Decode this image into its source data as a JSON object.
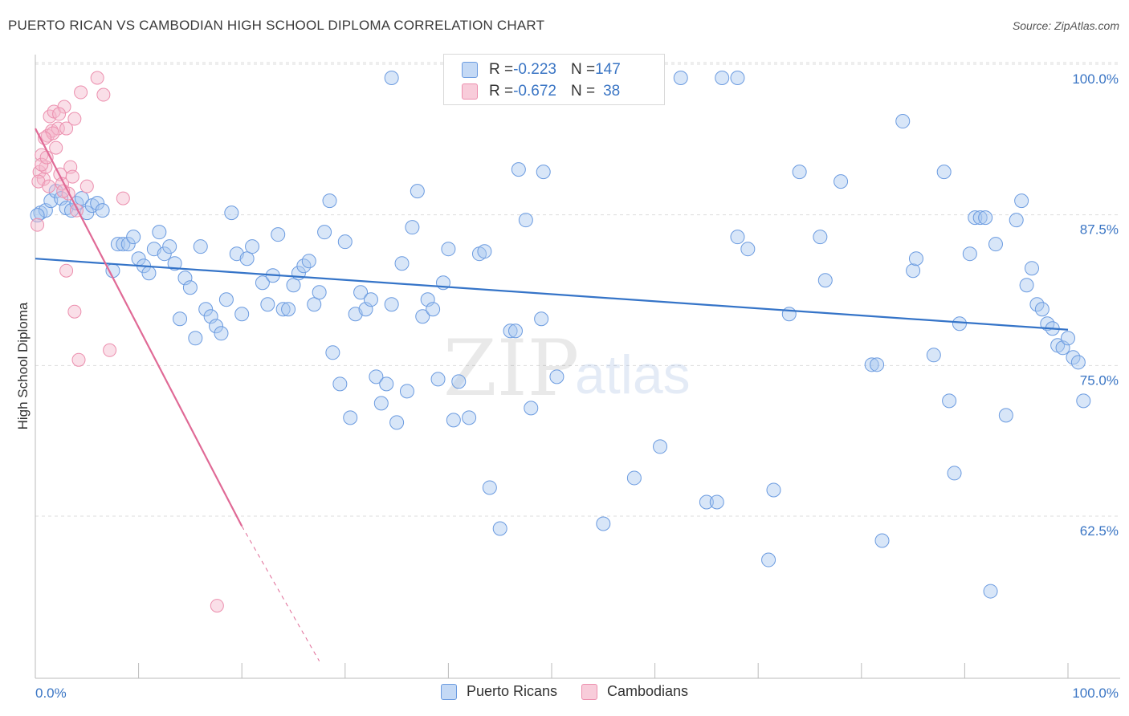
{
  "title": "PUERTO RICAN VS CAMBODIAN HIGH SCHOOL DIPLOMA CORRELATION CHART",
  "source": "Source: ZipAtlas.com",
  "watermark": {
    "zip": "ZIP",
    "atlas": "atlas"
  },
  "legend_top": [
    {
      "r_label": "R = ",
      "r_value": "-0.223",
      "n_label": "N = ",
      "n_value": "147"
    },
    {
      "r_label": "R = ",
      "r_value": "-0.672",
      "n_label": "N = ",
      "n_value": "38"
    }
  ],
  "legend_bottom": [
    {
      "label": "Puerto Ricans"
    },
    {
      "label": "Cambodians"
    }
  ],
  "colors": {
    "blue_fill": "#a9c8ef",
    "blue_stroke": "#6b9be0",
    "blue_line": "#3574c8",
    "pink_fill": "#f5b9cc",
    "pink_stroke": "#ec8fae",
    "pink_line": "#e06a96",
    "axis_label": "#3a75c4",
    "grid": "#dddddd"
  },
  "chart_data": {
    "type": "scatter",
    "title": "PUERTO RICAN VS CAMBODIAN HIGH SCHOOL DIPLOMA CORRELATION CHART",
    "xlabel": "",
    "ylabel": "High School Diploma",
    "xlim": [
      0,
      100
    ],
    "ylim": [
      51.5,
      101.5
    ],
    "x_tick_labels": [
      {
        "value": 0,
        "label": "0.0%"
      },
      {
        "value": 100,
        "label": "100.0%"
      }
    ],
    "y_tick_labels": [
      {
        "value": 100,
        "label": "100.0%"
      },
      {
        "value": 87.5,
        "label": "87.5%"
      },
      {
        "value": 75,
        "label": "75.0%"
      },
      {
        "value": 62.5,
        "label": "62.5%"
      }
    ],
    "series": [
      {
        "name": "Puerto Ricans",
        "r": -0.223,
        "n": 147,
        "trend": {
          "x": [
            0,
            100
          ],
          "y": [
            85.0,
            79.1
          ]
        },
        "points": [
          [
            0.5,
            88.8
          ],
          [
            1.0,
            89.0
          ],
          [
            1.5,
            89.8
          ],
          [
            2.0,
            90.6
          ],
          [
            2.5,
            90.0
          ],
          [
            3.0,
            89.2
          ],
          [
            3.5,
            89.0
          ],
          [
            4.0,
            89.6
          ],
          [
            4.5,
            90.0
          ],
          [
            5.0,
            88.8
          ],
          [
            5.5,
            89.4
          ],
          [
            6.0,
            89.6
          ],
          [
            6.5,
            89.0
          ],
          [
            7.5,
            84.0
          ],
          [
            8.0,
            86.2
          ],
          [
            8.5,
            86.2
          ],
          [
            9.0,
            86.2
          ],
          [
            9.5,
            86.8
          ],
          [
            10.0,
            85.0
          ],
          [
            10.5,
            84.4
          ],
          [
            11.0,
            83.8
          ],
          [
            11.5,
            85.8
          ],
          [
            12.0,
            87.2
          ],
          [
            12.5,
            85.4
          ],
          [
            13.0,
            86.0
          ],
          [
            13.5,
            84.6
          ],
          [
            14.0,
            80.0
          ],
          [
            14.5,
            83.4
          ],
          [
            15.0,
            82.6
          ],
          [
            15.5,
            78.4
          ],
          [
            16.0,
            86.0
          ],
          [
            16.5,
            80.8
          ],
          [
            17.0,
            80.2
          ],
          [
            17.5,
            79.4
          ],
          [
            18.0,
            78.8
          ],
          [
            18.5,
            81.6
          ],
          [
            19.0,
            88.8
          ],
          [
            19.5,
            85.4
          ],
          [
            20.0,
            80.4
          ],
          [
            20.5,
            85.0
          ],
          [
            21.0,
            86.0
          ],
          [
            22.0,
            83.0
          ],
          [
            22.5,
            81.2
          ],
          [
            23.0,
            83.6
          ],
          [
            23.5,
            87.0
          ],
          [
            24.0,
            80.8
          ],
          [
            24.5,
            80.8
          ],
          [
            25.0,
            82.8
          ],
          [
            25.5,
            83.8
          ],
          [
            26.0,
            84.4
          ],
          [
            26.5,
            84.8
          ],
          [
            27.0,
            81.2
          ],
          [
            27.5,
            82.2
          ],
          [
            28.0,
            87.2
          ],
          [
            28.5,
            89.8
          ],
          [
            28.8,
            77.2
          ],
          [
            29.5,
            74.6
          ],
          [
            30.0,
            86.4
          ],
          [
            30.5,
            71.8
          ],
          [
            31.0,
            80.4
          ],
          [
            31.5,
            82.2
          ],
          [
            32.0,
            80.8
          ],
          [
            32.5,
            81.6
          ],
          [
            33.0,
            75.2
          ],
          [
            33.5,
            73.0
          ],
          [
            34.0,
            74.6
          ],
          [
            34.5,
            81.2
          ],
          [
            35.0,
            71.4
          ],
          [
            35.5,
            84.6
          ],
          [
            36.0,
            74.0
          ],
          [
            36.5,
            87.6
          ],
          [
            37.0,
            90.6
          ],
          [
            37.5,
            80.2
          ],
          [
            38.0,
            81.6
          ],
          [
            38.5,
            80.8
          ],
          [
            39.0,
            75.0
          ],
          [
            39.5,
            83.0
          ],
          [
            40.0,
            85.8
          ],
          [
            40.5,
            71.6
          ],
          [
            41.0,
            74.8
          ],
          [
            42.0,
            71.8
          ],
          [
            43.0,
            85.4
          ],
          [
            43.5,
            85.6
          ],
          [
            44.0,
            66.0
          ],
          [
            45.0,
            62.6
          ],
          [
            46.0,
            79.0
          ],
          [
            46.5,
            79.0
          ],
          [
            46.8,
            92.4
          ],
          [
            47.5,
            88.2
          ],
          [
            48.0,
            72.6
          ],
          [
            49.0,
            80.0
          ],
          [
            49.2,
            92.2
          ],
          [
            50.5,
            75.2
          ],
          [
            34.5,
            100.0
          ],
          [
            53.0,
            100.0
          ],
          [
            58.0,
            100.0
          ],
          [
            60.0,
            100.0
          ],
          [
            62.5,
            100.0
          ],
          [
            66.5,
            100.0
          ],
          [
            68.0,
            100.0
          ],
          [
            55.0,
            63.0
          ],
          [
            58.0,
            66.8
          ],
          [
            60.5,
            69.4
          ],
          [
            65.0,
            64.8
          ],
          [
            66.0,
            64.8
          ],
          [
            68.0,
            86.8
          ],
          [
            69.0,
            85.8
          ],
          [
            71.0,
            60.0
          ],
          [
            71.5,
            65.8
          ],
          [
            73.0,
            80.4
          ],
          [
            74.0,
            92.2
          ],
          [
            76.0,
            86.8
          ],
          [
            76.5,
            83.2
          ],
          [
            78.0,
            91.4
          ],
          [
            81.0,
            76.2
          ],
          [
            81.5,
            76.2
          ],
          [
            82.0,
            61.6
          ],
          [
            84.0,
            96.4
          ],
          [
            85.0,
            84.0
          ],
          [
            85.3,
            85.0
          ],
          [
            87.0,
            77.0
          ],
          [
            88.0,
            92.2
          ],
          [
            88.5,
            73.2
          ],
          [
            89.0,
            67.2
          ],
          [
            89.5,
            79.6
          ],
          [
            90.5,
            85.4
          ],
          [
            91.0,
            88.4
          ],
          [
            91.5,
            88.4
          ],
          [
            92.0,
            88.4
          ],
          [
            92.5,
            57.4
          ],
          [
            93.0,
            86.2
          ],
          [
            94.0,
            72.0
          ],
          [
            95.0,
            88.2
          ],
          [
            95.5,
            89.8
          ],
          [
            96.0,
            82.8
          ],
          [
            96.5,
            84.2
          ],
          [
            97.0,
            81.2
          ],
          [
            97.5,
            80.8
          ],
          [
            98.0,
            79.6
          ],
          [
            98.5,
            79.2
          ],
          [
            99.0,
            77.8
          ],
          [
            99.5,
            77.6
          ],
          [
            100.0,
            78.4
          ],
          [
            100.5,
            76.8
          ],
          [
            101.0,
            76.4
          ],
          [
            101.5,
            73.2
          ],
          [
            0.2,
            88.6
          ]
        ]
      },
      {
        "name": "Cambodians",
        "r": -0.672,
        "n": 38,
        "trend": {
          "x": [
            0,
            20
          ],
          "y": [
            95.8,
            62.8
          ]
        },
        "trend_dashed": {
          "x": [
            20,
            27.5
          ],
          "y": [
            62.8,
            51.6
          ]
        },
        "points": [
          [
            0.2,
            87.8
          ],
          [
            0.4,
            92.2
          ],
          [
            0.6,
            93.6
          ],
          [
            0.8,
            91.6
          ],
          [
            1.0,
            92.6
          ],
          [
            1.2,
            95.2
          ],
          [
            1.4,
            96.8
          ],
          [
            1.6,
            95.6
          ],
          [
            1.8,
            97.2
          ],
          [
            2.0,
            94.2
          ],
          [
            2.2,
            95.8
          ],
          [
            2.4,
            92.0
          ],
          [
            2.6,
            91.2
          ],
          [
            2.8,
            97.6
          ],
          [
            3.0,
            95.8
          ],
          [
            3.2,
            90.4
          ],
          [
            3.4,
            92.6
          ],
          [
            3.6,
            91.8
          ],
          [
            3.8,
            96.6
          ],
          [
            4.0,
            89.0
          ],
          [
            4.4,
            98.8
          ],
          [
            3.0,
            84.0
          ],
          [
            3.8,
            80.6
          ],
          [
            4.2,
            76.6
          ],
          [
            5.0,
            91.0
          ],
          [
            6.0,
            100.0
          ],
          [
            6.6,
            98.6
          ],
          [
            7.2,
            77.4
          ],
          [
            8.5,
            90.0
          ],
          [
            17.6,
            56.2
          ],
          [
            0.3,
            91.4
          ],
          [
            0.6,
            92.8
          ],
          [
            1.1,
            93.4
          ],
          [
            1.7,
            95.4
          ],
          [
            2.3,
            97.0
          ],
          [
            0.9,
            95.0
          ],
          [
            1.3,
            91.0
          ],
          [
            2.7,
            90.6
          ]
        ]
      }
    ]
  }
}
